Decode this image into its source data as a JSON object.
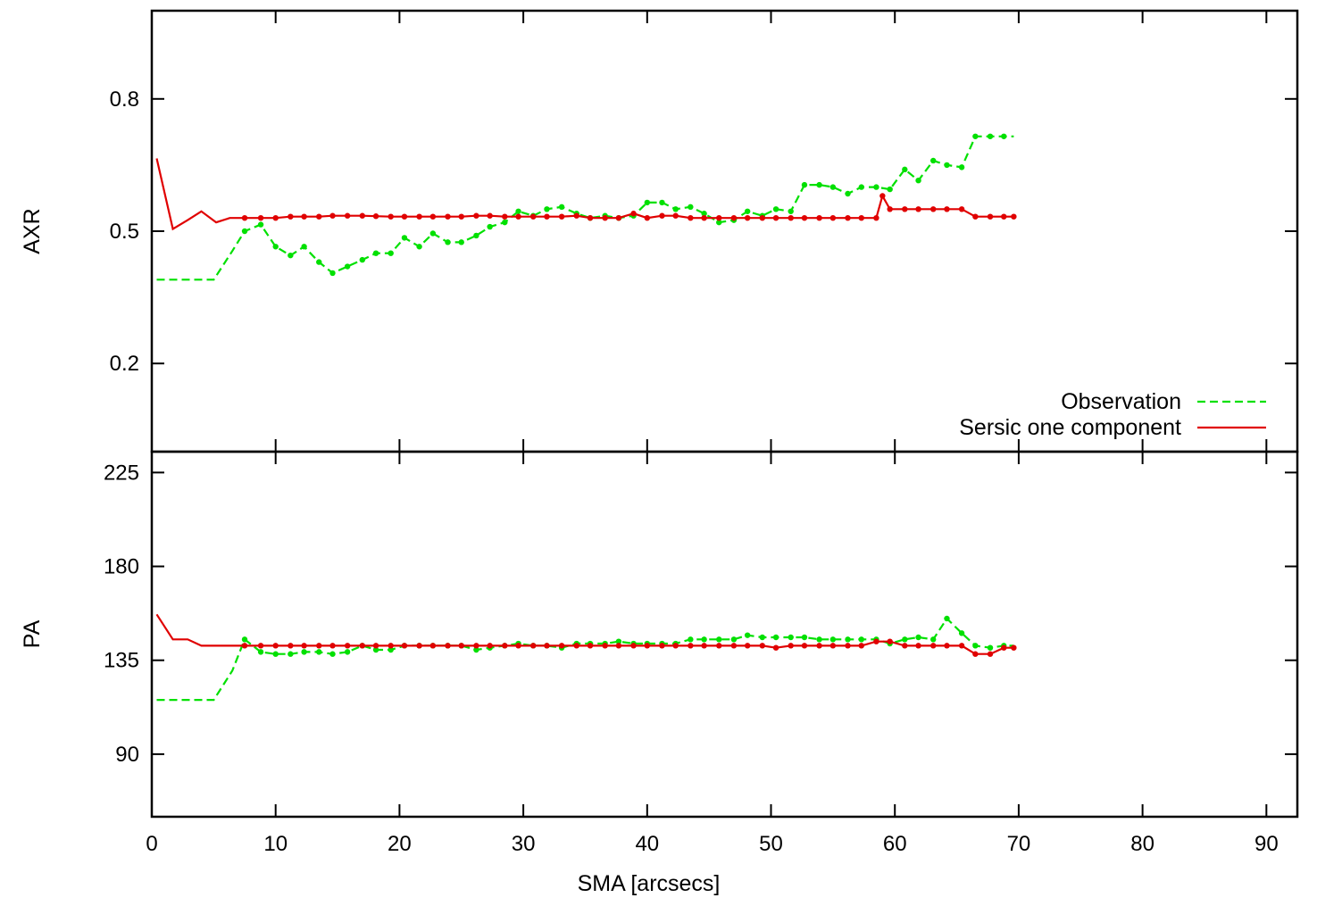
{
  "chart_data": [
    {
      "type": "line",
      "panel": "top",
      "xlabel": "",
      "ylabel": "AXR",
      "xlim": [
        0,
        92.5
      ],
      "ylim": [
        0.0,
        1.0
      ],
      "yticks": [
        0.2,
        0.5,
        0.8
      ],
      "ytick_labels": [
        "0.2",
        "0.5",
        "0.8"
      ],
      "legend": {
        "placement": "bottom-right",
        "entries": [
          "Observation",
          "Sersic one component"
        ]
      },
      "series": [
        {
          "name": "Observation",
          "style": "dashed",
          "color": "#00e000",
          "x": [
            0.4,
            5.0,
            6.5,
            7.5,
            8.8,
            10.0,
            11.2,
            12.3,
            13.5,
            14.6,
            15.8,
            17.0,
            18.1,
            19.3,
            20.4,
            21.6,
            22.7,
            23.9,
            25.0,
            26.2,
            27.3,
            28.5,
            29.6,
            30.8,
            31.9,
            33.1,
            34.3,
            35.4,
            36.6,
            37.7,
            38.9,
            40.0,
            41.2,
            42.3,
            43.5,
            44.6,
            45.8,
            47.0,
            48.1,
            49.3,
            50.4,
            51.6,
            52.7,
            53.9,
            55.0,
            56.2,
            57.3,
            58.5,
            59.6,
            60.8,
            61.9,
            63.1,
            64.2,
            65.4,
            66.5,
            67.7,
            68.8,
            69.6
          ],
          "y": [
            0.39,
            0.39,
            0.455,
            0.5,
            0.515,
            0.465,
            0.445,
            0.465,
            0.43,
            0.405,
            0.42,
            0.435,
            0.45,
            0.45,
            0.485,
            0.465,
            0.495,
            0.475,
            0.475,
            0.49,
            0.51,
            0.52,
            0.545,
            0.535,
            0.55,
            0.555,
            0.54,
            0.53,
            0.535,
            0.53,
            0.535,
            0.565,
            0.565,
            0.55,
            0.555,
            0.54,
            0.52,
            0.525,
            0.545,
            0.535,
            0.55,
            0.545,
            0.605,
            0.605,
            0.6,
            0.585,
            0.6,
            0.6,
            0.595,
            0.64,
            0.615,
            0.66,
            0.65,
            0.645,
            0.715,
            0.715,
            0.715,
            0.715
          ]
        },
        {
          "name": "Sersic one component",
          "style": "solid",
          "color": "#e00000",
          "x": [
            0.4,
            1.7,
            2.9,
            4.0,
            5.2,
            6.3,
            7.5,
            8.8,
            10.0,
            11.2,
            12.3,
            13.5,
            14.6,
            15.8,
            17.0,
            18.1,
            19.3,
            20.4,
            21.6,
            22.7,
            23.9,
            25.0,
            26.2,
            27.3,
            28.5,
            29.6,
            30.8,
            31.9,
            33.1,
            34.3,
            35.4,
            36.6,
            37.7,
            38.9,
            40.0,
            41.2,
            42.3,
            43.5,
            44.6,
            45.8,
            47.0,
            48.1,
            49.3,
            50.4,
            51.6,
            52.7,
            53.9,
            55.0,
            56.2,
            57.3,
            58.5,
            59.0,
            59.6,
            60.8,
            61.9,
            63.1,
            64.2,
            65.4,
            66.5,
            67.7,
            68.8,
            69.6
          ],
          "y": [
            0.665,
            0.505,
            0.525,
            0.545,
            0.52,
            0.53,
            0.53,
            0.53,
            0.53,
            0.533,
            0.533,
            0.533,
            0.535,
            0.535,
            0.535,
            0.534,
            0.533,
            0.533,
            0.533,
            0.533,
            0.533,
            0.533,
            0.535,
            0.535,
            0.533,
            0.533,
            0.533,
            0.533,
            0.533,
            0.535,
            0.53,
            0.53,
            0.53,
            0.54,
            0.53,
            0.535,
            0.535,
            0.53,
            0.53,
            0.53,
            0.53,
            0.53,
            0.53,
            0.53,
            0.53,
            0.53,
            0.53,
            0.53,
            0.53,
            0.53,
            0.53,
            0.58,
            0.55,
            0.55,
            0.55,
            0.55,
            0.55,
            0.55,
            0.533,
            0.533,
            0.533,
            0.533
          ]
        }
      ]
    },
    {
      "type": "line",
      "panel": "bottom",
      "xlabel": "SMA [arcsecs]",
      "ylabel": "PA",
      "xlim": [
        0,
        92.5
      ],
      "ylim": [
        60,
        235
      ],
      "xticks": [
        0,
        10,
        20,
        30,
        40,
        50,
        60,
        70,
        80,
        90
      ],
      "xtick_labels": [
        "0",
        "10",
        "20",
        "30",
        "40",
        "50",
        "60",
        "70",
        "80",
        "90"
      ],
      "yticks": [
        90,
        135,
        180,
        225
      ],
      "ytick_labels": [
        "90",
        "135",
        "180",
        "225"
      ],
      "series": [
        {
          "name": "Observation",
          "style": "dashed",
          "color": "#00e000",
          "x": [
            0.4,
            5.0,
            6.5,
            7.5,
            8.8,
            10.0,
            11.2,
            12.3,
            13.5,
            14.6,
            15.8,
            17.0,
            18.1,
            19.3,
            20.4,
            21.6,
            22.7,
            23.9,
            25.0,
            26.2,
            27.3,
            28.5,
            29.6,
            30.8,
            31.9,
            33.1,
            34.3,
            35.4,
            36.6,
            37.7,
            38.9,
            40.0,
            41.2,
            42.3,
            43.5,
            44.6,
            45.8,
            47.0,
            48.1,
            49.3,
            50.4,
            51.6,
            52.7,
            53.9,
            55.0,
            56.2,
            57.3,
            58.5,
            59.6,
            60.8,
            61.9,
            63.1,
            64.2,
            65.4,
            66.5,
            67.7,
            68.8,
            69.6
          ],
          "y": [
            116,
            116,
            130,
            145,
            139,
            138,
            138,
            139,
            139,
            138,
            139,
            142,
            140,
            140,
            142,
            142,
            142,
            142,
            142,
            140,
            141,
            142,
            143,
            142,
            142,
            141,
            143,
            143,
            143,
            144,
            143,
            143,
            143,
            143,
            145,
            145,
            145,
            145,
            147,
            146,
            146,
            146,
            146,
            145,
            145,
            145,
            145,
            145,
            143,
            145,
            146,
            145,
            155,
            148,
            142,
            141,
            142,
            142
          ]
        },
        {
          "name": "Sersic one component",
          "style": "solid",
          "color": "#e00000",
          "x": [
            0.4,
            1.7,
            2.9,
            4.0,
            5.2,
            6.3,
            7.5,
            8.8,
            10.0,
            11.2,
            12.3,
            13.5,
            14.6,
            15.8,
            17.0,
            18.1,
            19.3,
            20.4,
            21.6,
            22.7,
            23.9,
            25.0,
            26.2,
            27.3,
            28.5,
            29.6,
            30.8,
            31.9,
            33.1,
            34.3,
            35.4,
            36.6,
            37.7,
            38.9,
            40.0,
            41.2,
            42.3,
            43.5,
            44.6,
            45.8,
            47.0,
            48.1,
            49.3,
            50.4,
            51.6,
            52.7,
            53.9,
            55.0,
            56.2,
            57.3,
            58.5,
            59.6,
            60.8,
            61.9,
            63.1,
            64.2,
            65.4,
            66.5,
            67.7,
            68.8,
            69.6
          ],
          "y": [
            157,
            145,
            145,
            142,
            142,
            142,
            142,
            142,
            142,
            142,
            142,
            142,
            142,
            142,
            142,
            142,
            142,
            142,
            142,
            142,
            142,
            142,
            142,
            142,
            142,
            142,
            142,
            142,
            142,
            142,
            142,
            142,
            142,
            142,
            142,
            142,
            142,
            142,
            142,
            142,
            142,
            142,
            142,
            141,
            142,
            142,
            142,
            142,
            142,
            142,
            144,
            144,
            142,
            142,
            142,
            142,
            142,
            138,
            138,
            141,
            141
          ]
        }
      ]
    }
  ]
}
